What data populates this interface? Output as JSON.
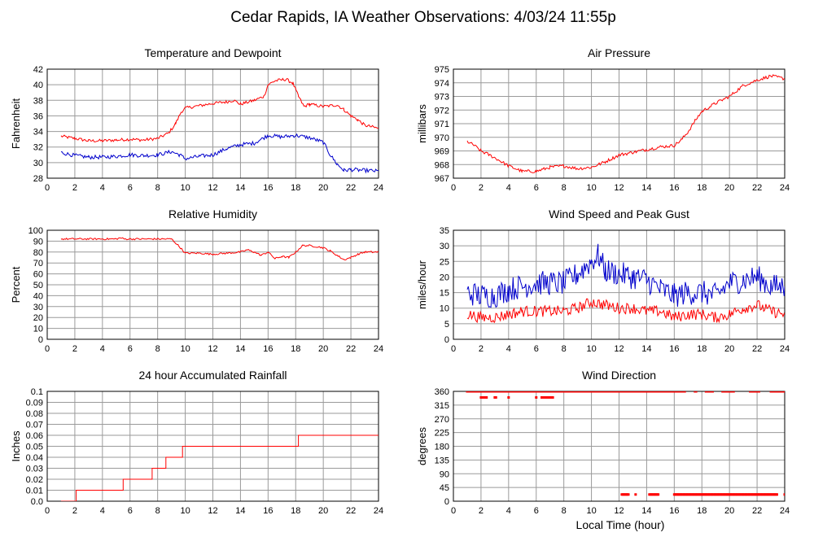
{
  "title": "Cedar Rapids, IA Weather Observations: 4/03/24 11:55p",
  "x_label": "Local Time (hour)",
  "colors": {
    "red": "#ff0000",
    "blue": "#0000cc",
    "grid": "#9a9a9a"
  },
  "chart_data": [
    {
      "id": "temp",
      "type": "line",
      "title": "Temperature and Dewpoint",
      "ylabel": "Fahrenheit",
      "xlim": [
        0,
        24
      ],
      "xticks": [
        0,
        2,
        4,
        6,
        8,
        10,
        12,
        14,
        16,
        18,
        20,
        22,
        24
      ],
      "ylim": [
        28,
        42
      ],
      "yticks": [
        28,
        30,
        32,
        34,
        36,
        38,
        40,
        42
      ],
      "grid": true,
      "series": [
        {
          "color": "#ff0000",
          "jitter": 0.2,
          "points": [
            [
              1,
              33.4
            ],
            [
              2,
              33.1
            ],
            [
              3,
              32.8
            ],
            [
              4,
              32.8
            ],
            [
              5,
              32.9
            ],
            [
              6,
              33.0
            ],
            [
              7,
              32.9
            ],
            [
              8,
              33.1
            ],
            [
              8.8,
              33.8
            ],
            [
              9.3,
              35.0
            ],
            [
              9.7,
              36.5
            ],
            [
              10,
              37.0
            ],
            [
              11,
              37.3
            ],
            [
              12,
              37.6
            ],
            [
              13,
              37.8
            ],
            [
              13.5,
              38.0
            ],
            [
              14,
              37.5
            ],
            [
              15,
              38.0
            ],
            [
              15.7,
              38.5
            ],
            [
              16,
              40.0
            ],
            [
              16.5,
              40.5
            ],
            [
              17.3,
              40.7
            ],
            [
              17.8,
              40.2
            ],
            [
              18.2,
              38.5
            ],
            [
              18.6,
              37.2
            ],
            [
              19,
              37.5
            ],
            [
              20,
              37.2
            ],
            [
              21,
              37.4
            ],
            [
              21.5,
              36.8
            ],
            [
              22,
              36.0
            ],
            [
              22.5,
              35.5
            ],
            [
              23,
              34.8
            ],
            [
              24,
              34.4
            ]
          ]
        },
        {
          "color": "#0000cc",
          "jitter": 0.25,
          "points": [
            [
              1,
              31.3
            ],
            [
              2,
              30.9
            ],
            [
              3,
              30.7
            ],
            [
              4,
              30.7
            ],
            [
              5,
              30.8
            ],
            [
              6,
              31.0
            ],
            [
              7,
              30.9
            ],
            [
              8,
              31.0
            ],
            [
              9,
              31.4
            ],
            [
              9.6,
              31.0
            ],
            [
              10,
              30.5
            ],
            [
              11,
              30.8
            ],
            [
              12,
              31.0
            ],
            [
              13,
              31.8
            ],
            [
              14,
              32.3
            ],
            [
              15,
              32.5
            ],
            [
              16,
              33.5
            ],
            [
              17,
              33.3
            ],
            [
              18,
              33.5
            ],
            [
              19,
              33.2
            ],
            [
              20,
              32.6
            ],
            [
              20.5,
              31.0
            ],
            [
              21,
              29.8
            ],
            [
              21.5,
              29.0
            ],
            [
              22,
              29.1
            ],
            [
              23,
              29.0
            ],
            [
              24,
              28.9
            ]
          ]
        }
      ]
    },
    {
      "id": "pressure",
      "type": "line",
      "title": "Air Pressure",
      "ylabel": "millibars",
      "xlim": [
        0,
        24
      ],
      "xticks": [
        0,
        2,
        4,
        6,
        8,
        10,
        12,
        14,
        16,
        18,
        20,
        22,
        24
      ],
      "ylim": [
        967,
        975
      ],
      "yticks": [
        967,
        968,
        969,
        970,
        971,
        972,
        973,
        974,
        975
      ],
      "grid": true,
      "series": [
        {
          "color": "#ff0000",
          "jitter": 0.12,
          "points": [
            [
              1,
              969.7
            ],
            [
              1.5,
              969.4
            ],
            [
              2,
              969.0
            ],
            [
              3,
              968.5
            ],
            [
              4,
              967.9
            ],
            [
              5,
              967.5
            ],
            [
              6,
              967.5
            ],
            [
              7,
              967.8
            ],
            [
              8,
              967.9
            ],
            [
              9,
              967.7
            ],
            [
              10,
              967.8
            ],
            [
              11,
              968.2
            ],
            [
              12,
              968.7
            ],
            [
              13,
              968.9
            ],
            [
              14,
              969.1
            ],
            [
              15,
              969.3
            ],
            [
              16,
              969.4
            ],
            [
              16.5,
              969.8
            ],
            [
              17,
              970.4
            ],
            [
              17.5,
              971.2
            ],
            [
              18,
              971.9
            ],
            [
              19,
              972.5
            ],
            [
              20,
              973.0
            ],
            [
              21,
              973.8
            ],
            [
              22,
              974.2
            ],
            [
              23,
              974.5
            ],
            [
              24,
              974.3
            ]
          ]
        }
      ]
    },
    {
      "id": "humidity",
      "type": "line",
      "title": "Relative Humidity",
      "ylabel": "Percent",
      "xlim": [
        0,
        24
      ],
      "xticks": [
        0,
        2,
        4,
        6,
        8,
        10,
        12,
        14,
        16,
        18,
        20,
        22,
        24
      ],
      "ylim": [
        0,
        100
      ],
      "yticks": [
        0,
        10,
        20,
        30,
        40,
        50,
        60,
        70,
        80,
        90,
        100
      ],
      "grid": true,
      "series": [
        {
          "color": "#ff0000",
          "jitter": 0.8,
          "points": [
            [
              1,
              92
            ],
            [
              5,
              92
            ],
            [
              5.3,
              93
            ],
            [
              5.6,
              92
            ],
            [
              9,
              92
            ],
            [
              9.5,
              86
            ],
            [
              10,
              79
            ],
            [
              11,
              79
            ],
            [
              12,
              78
            ],
            [
              13,
              79
            ],
            [
              14,
              80
            ],
            [
              14.5,
              82
            ],
            [
              15,
              80
            ],
            [
              15.5,
              77
            ],
            [
              16,
              80
            ],
            [
              16.5,
              74
            ],
            [
              17,
              76
            ],
            [
              17.5,
              75
            ],
            [
              18,
              80
            ],
            [
              18.5,
              86
            ],
            [
              19,
              86
            ],
            [
              20,
              84
            ],
            [
              20.5,
              81
            ],
            [
              21,
              77
            ],
            [
              21.5,
              73
            ],
            [
              22,
              75
            ],
            [
              22.5,
              78
            ],
            [
              23,
              80
            ],
            [
              24,
              80
            ]
          ]
        }
      ]
    },
    {
      "id": "wind",
      "type": "line",
      "title": "Wind Speed and Peak Gust",
      "ylabel": "miles/hour",
      "xlim": [
        0,
        24
      ],
      "xticks": [
        0,
        2,
        4,
        6,
        8,
        10,
        12,
        14,
        16,
        18,
        20,
        22,
        24
      ],
      "ylim": [
        0,
        35
      ],
      "yticks": [
        0,
        5,
        10,
        15,
        20,
        25,
        30,
        35
      ],
      "grid": true,
      "series": [
        {
          "color": "#0000cc",
          "jitter": 4.0,
          "points": [
            [
              1,
              15
            ],
            [
              2,
              14
            ],
            [
              3,
              14
            ],
            [
              4,
              16
            ],
            [
              5,
              17
            ],
            [
              6,
              18
            ],
            [
              7,
              18
            ],
            [
              8,
              18
            ],
            [
              9,
              21
            ],
            [
              10,
              25
            ],
            [
              10.5,
              27
            ],
            [
              11,
              22
            ],
            [
              12,
              21
            ],
            [
              13,
              20
            ],
            [
              14,
              19
            ],
            [
              15,
              16
            ],
            [
              16,
              14
            ],
            [
              17,
              15
            ],
            [
              18,
              15
            ],
            [
              19,
              14
            ],
            [
              20,
              18
            ],
            [
              21,
              19
            ],
            [
              22,
              20
            ],
            [
              23,
              17
            ],
            [
              24,
              17
            ]
          ]
        },
        {
          "color": "#ff0000",
          "jitter": 1.8,
          "points": [
            [
              1,
              8
            ],
            [
              2,
              7
            ],
            [
              3,
              7
            ],
            [
              4,
              8
            ],
            [
              5,
              9
            ],
            [
              6,
              9
            ],
            [
              7,
              9
            ],
            [
              8,
              9
            ],
            [
              9,
              10
            ],
            [
              10,
              12
            ],
            [
              11,
              11
            ],
            [
              12,
              10
            ],
            [
              13,
              10
            ],
            [
              14,
              9
            ],
            [
              15,
              9
            ],
            [
              16,
              7
            ],
            [
              17,
              8
            ],
            [
              18,
              8
            ],
            [
              19,
              7
            ],
            [
              20,
              8
            ],
            [
              21,
              10
            ],
            [
              22,
              11
            ],
            [
              23,
              9
            ],
            [
              24,
              8
            ]
          ]
        }
      ]
    },
    {
      "id": "rain",
      "type": "line",
      "step": true,
      "title": "24 hour Accumulated Rainfall",
      "ylabel": "Inches",
      "xlim": [
        0,
        24
      ],
      "xticks": [
        0,
        2,
        4,
        6,
        8,
        10,
        12,
        14,
        16,
        18,
        20,
        22,
        24
      ],
      "ylim": [
        0,
        0.1
      ],
      "yticks": [
        0,
        0.01,
        0.02,
        0.03,
        0.04,
        0.05,
        0.06,
        0.07,
        0.08,
        0.09,
        0.1
      ],
      "grid": true,
      "series": [
        {
          "color": "#ff0000",
          "jitter": 0,
          "points": [
            [
              1,
              0
            ],
            [
              2.1,
              0
            ],
            [
              2.1,
              0.01
            ],
            [
              5.5,
              0.01
            ],
            [
              5.5,
              0.02
            ],
            [
              7.6,
              0.02
            ],
            [
              7.6,
              0.03
            ],
            [
              8.6,
              0.03
            ],
            [
              8.6,
              0.04
            ],
            [
              9.8,
              0.04
            ],
            [
              9.8,
              0.05
            ],
            [
              18.2,
              0.05
            ],
            [
              18.2,
              0.06
            ],
            [
              24,
              0.06
            ]
          ]
        }
      ]
    },
    {
      "id": "direction",
      "type": "scatter",
      "title": "Wind Direction",
      "ylabel": "degrees",
      "xlim": [
        0,
        24
      ],
      "xticks": [
        0,
        2,
        4,
        6,
        8,
        10,
        12,
        14,
        16,
        18,
        20,
        22,
        24
      ],
      "ylim": [
        0,
        360
      ],
      "yticks": [
        0,
        45,
        90,
        135,
        180,
        225,
        270,
        315,
        360
      ],
      "grid": true,
      "series": [
        {
          "color": "#ff0000",
          "clusters": [
            {
              "from": 1.0,
              "to": 16.8,
              "y": 360,
              "step": 0.08
            },
            {
              "from": 2.0,
              "to": 2.4,
              "y": 340,
              "step": 0.08
            },
            {
              "from": 3.0,
              "to": 3.1,
              "y": 340,
              "step": 0.08
            },
            {
              "from": 4.0,
              "to": 4.0,
              "y": 340,
              "step": 0.08
            },
            {
              "from": 6.0,
              "to": 6.0,
              "y": 340,
              "step": 0.08
            },
            {
              "from": 6.4,
              "to": 7.2,
              "y": 340,
              "step": 0.08
            },
            {
              "from": 12.2,
              "to": 12.7,
              "y": 22,
              "step": 0.08
            },
            {
              "from": 13.2,
              "to": 13.2,
              "y": 22,
              "step": 0.08
            },
            {
              "from": 14.2,
              "to": 14.9,
              "y": 22,
              "step": 0.08
            },
            {
              "from": 16.0,
              "to": 23.5,
              "y": 22,
              "step": 0.08
            },
            {
              "from": 17.5,
              "to": 17.6,
              "y": 360,
              "step": 0.08
            },
            {
              "from": 18.3,
              "to": 18.8,
              "y": 360,
              "step": 0.08
            },
            {
              "from": 19.5,
              "to": 20.3,
              "y": 360,
              "step": 0.08
            },
            {
              "from": 21.5,
              "to": 22.2,
              "y": 360,
              "step": 0.08
            },
            {
              "from": 23.0,
              "to": 24.0,
              "y": 360,
              "step": 0.08
            },
            {
              "from": 24.0,
              "to": 24.0,
              "y": 22,
              "step": 0.08
            }
          ]
        }
      ]
    }
  ]
}
